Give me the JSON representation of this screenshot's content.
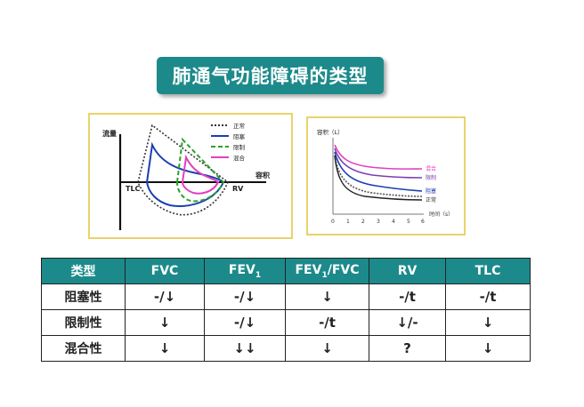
{
  "title": "肺通气功能障碍的类型",
  "left_chart": {
    "ylabel": "流量",
    "xlabel": "容积",
    "tlc_label": "TLC",
    "rv_label": "RV",
    "legend": [
      "正常",
      "阻塞",
      "限制",
      "混合"
    ],
    "colors": {
      "normal": "#333333",
      "obstructive": "#1a3fb0",
      "restrictive": "#2aa02a",
      "mixed": "#e040c0"
    }
  },
  "right_chart": {
    "ylabel": "容积（L）",
    "xlabel": "时间（s）",
    "x_ticks": [
      "0",
      "1",
      "2",
      "3",
      "4",
      "5",
      "6"
    ],
    "legend": [
      "混合",
      "限制",
      "阻塞",
      "正常"
    ],
    "colors": {
      "mixed": "#e040c0",
      "restrictive": "#7a3fb0",
      "obstructive": "#1a3fb0",
      "normal": "#555555"
    }
  },
  "table": {
    "headers": [
      "类型",
      "FVC",
      "FEV",
      "FEV",
      "RV",
      "TLC"
    ],
    "header_subs": [
      "",
      "",
      "1",
      "1",
      "",
      ""
    ],
    "header_suffix": [
      "",
      "",
      "",
      "/FVC",
      "",
      ""
    ],
    "rows": [
      {
        "name": "阻塞性",
        "cells": [
          "-/↓",
          "-/↓",
          "↓",
          "-/t",
          "-/t"
        ],
        "red": [
          false,
          false,
          true,
          false,
          false
        ]
      },
      {
        "name": "限制性",
        "cells": [
          "↓",
          "-/↓",
          "-/t",
          "↓/-",
          "↓"
        ],
        "red": [
          true,
          false,
          false,
          false,
          true
        ]
      },
      {
        "name": "混合性",
        "cells": [
          "↓",
          "↓↓",
          "↓",
          "?",
          "↓"
        ],
        "red": [
          true,
          true,
          true,
          false,
          true
        ]
      }
    ]
  }
}
